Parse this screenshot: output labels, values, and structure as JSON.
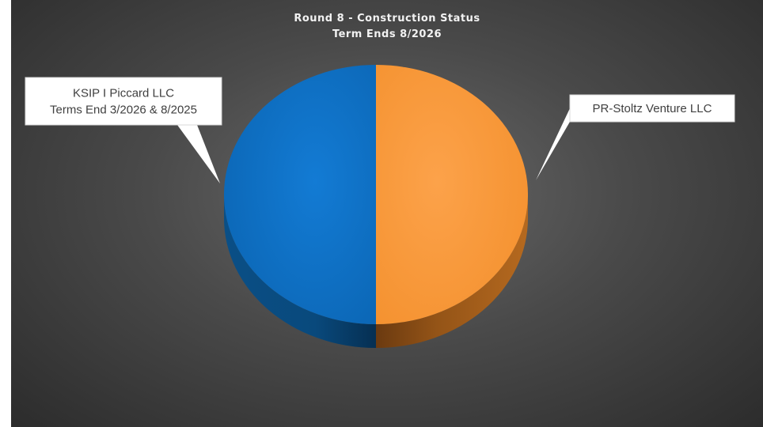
{
  "chart_data": {
    "type": "pie",
    "title_lines": [
      "Round 8 - Construction Status",
      "Term Ends 8/2026"
    ],
    "slices": [
      {
        "label_lines": [
          "KSIP I Piccard LLC",
          "Terms End 3/2026 & 8/2025"
        ],
        "value": 1,
        "color": "#0b6fc4",
        "side_color": "#09558f"
      },
      {
        "label_lines": [
          "PR-Stoltz Venture LLC"
        ],
        "value": 1,
        "color": "#f99a35",
        "side_color": "#a7601b"
      }
    ],
    "style": "3d",
    "legend": "none"
  }
}
